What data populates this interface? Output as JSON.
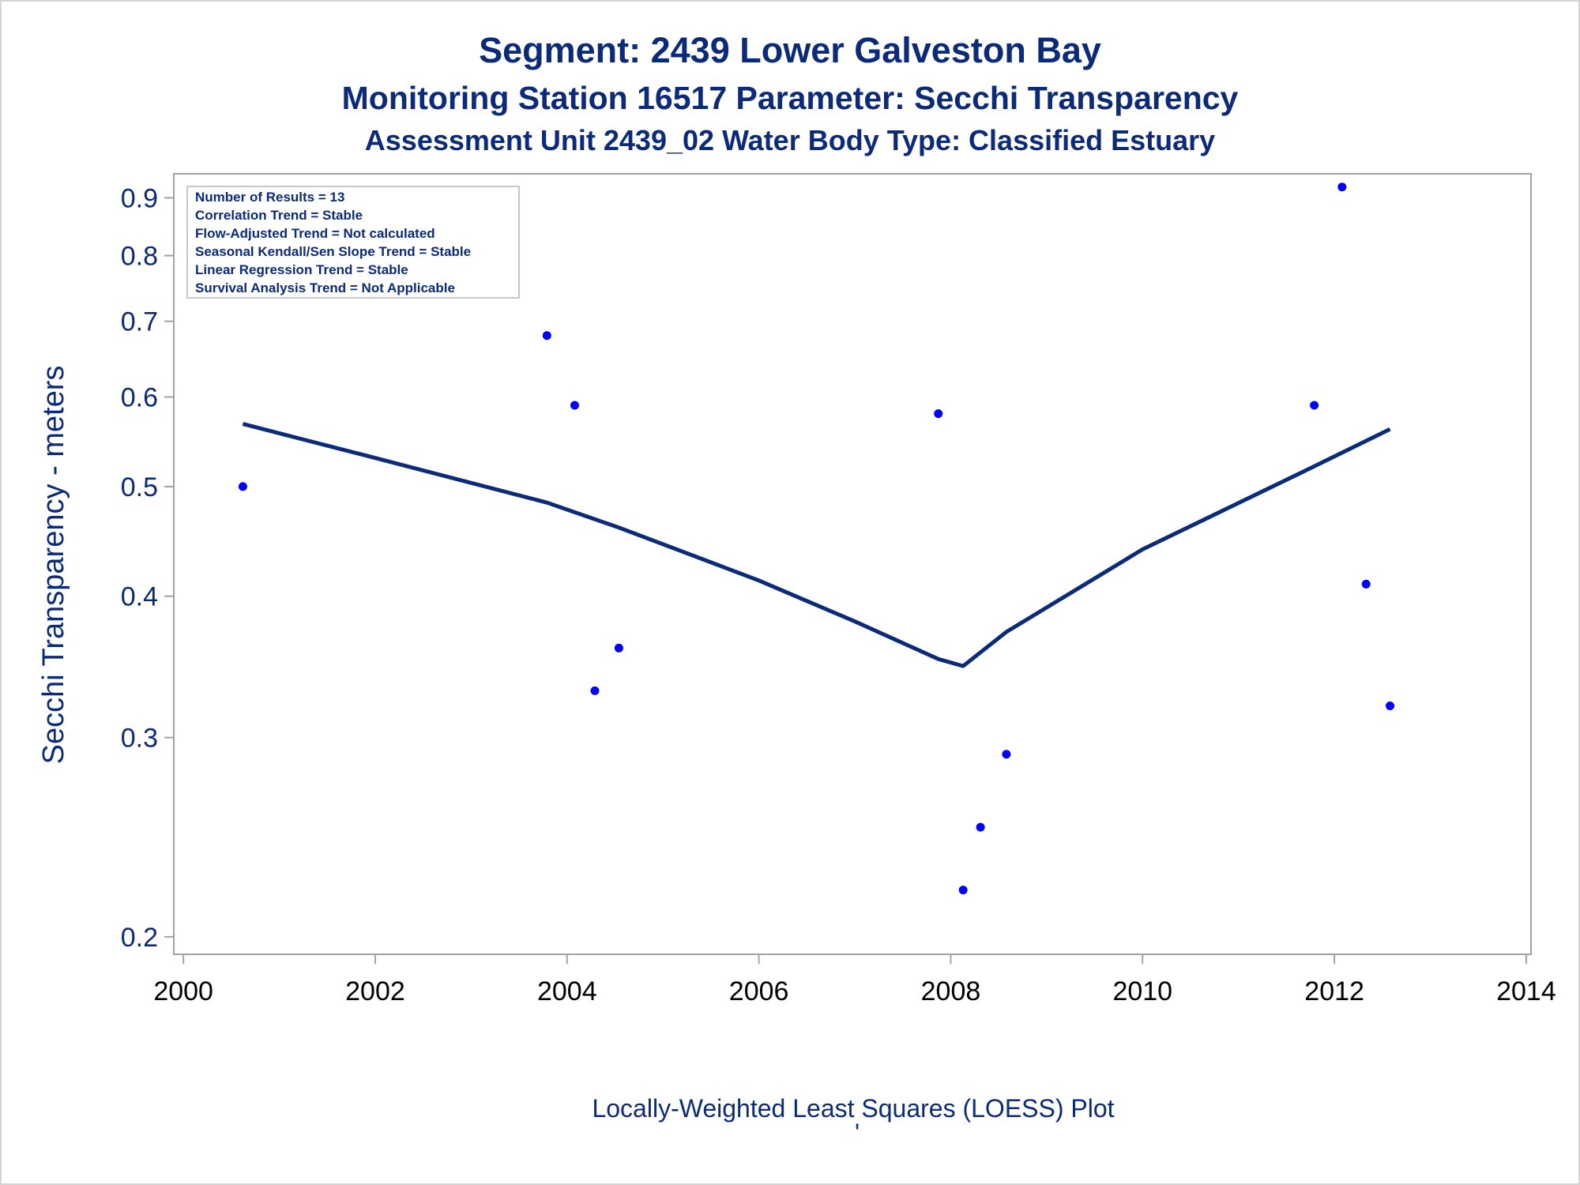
{
  "chart_data": {
    "type": "scatter",
    "titles": [
      "Segment: 2439  Lower Galveston Bay",
      "Monitoring Station 16517 Parameter: Secchi Transparency",
      "Assessment Unit 2439_02   Water Body Type: Classified Estuary"
    ],
    "ylabel": "Secchi Transparency - meters",
    "xlabel": "Locally-Weighted Least Squares (LOESS) Plot",
    "footnote_mark": "'",
    "y_scale": "log",
    "ylim": [
      0.193,
      0.945
    ],
    "xlim": [
      1999.9,
      2014.05
    ],
    "x_ticks": [
      2000,
      2002,
      2004,
      2006,
      2008,
      2010,
      2012,
      2014
    ],
    "y_ticks": [
      0.2,
      0.3,
      0.4,
      0.5,
      0.6,
      0.7,
      0.8,
      0.9
    ],
    "y_tick_labels": [
      "0.2",
      "0.3",
      "0.4",
      "0.5",
      "0.6",
      "0.7",
      "0.8",
      "0.9"
    ],
    "x_tick_labels": [
      "2000",
      "2002",
      "2004",
      "2006",
      "2008",
      "2010",
      "2012",
      "2014"
    ],
    "inset": [
      "Number of Results = 13",
      "Correlation Trend = Stable",
      "Flow-Adjusted Trend = Not calculated",
      "Seasonal Kendall/Sen Slope Trend = Stable",
      "Linear Regression Trend = Stable",
      "Survival Analysis Trend = Not Applicable"
    ],
    "series": [
      {
        "kind": "points",
        "color": "#0000ff",
        "x": [
          2000.62,
          2003.79,
          2004.08,
          2004.29,
          2004.54,
          2007.87,
          2008.13,
          2008.31,
          2008.58,
          2011.79,
          2012.08,
          2012.33,
          2012.58
        ],
        "y": [
          0.5,
          0.68,
          0.59,
          0.33,
          0.36,
          0.58,
          0.22,
          0.25,
          0.29,
          0.59,
          0.92,
          0.41,
          0.32
        ]
      },
      {
        "kind": "loess-line",
        "color": "#0b2a78",
        "x": [
          2000.62,
          2002.0,
          2003.79,
          2004.54,
          2006.0,
          2007.0,
          2007.87,
          2008.13,
          2008.58,
          2010.0,
          2011.79,
          2012.58
        ],
        "y": [
          0.568,
          0.53,
          0.484,
          0.46,
          0.413,
          0.38,
          0.352,
          0.347,
          0.372,
          0.44,
          0.521,
          0.562
        ]
      }
    ]
  }
}
